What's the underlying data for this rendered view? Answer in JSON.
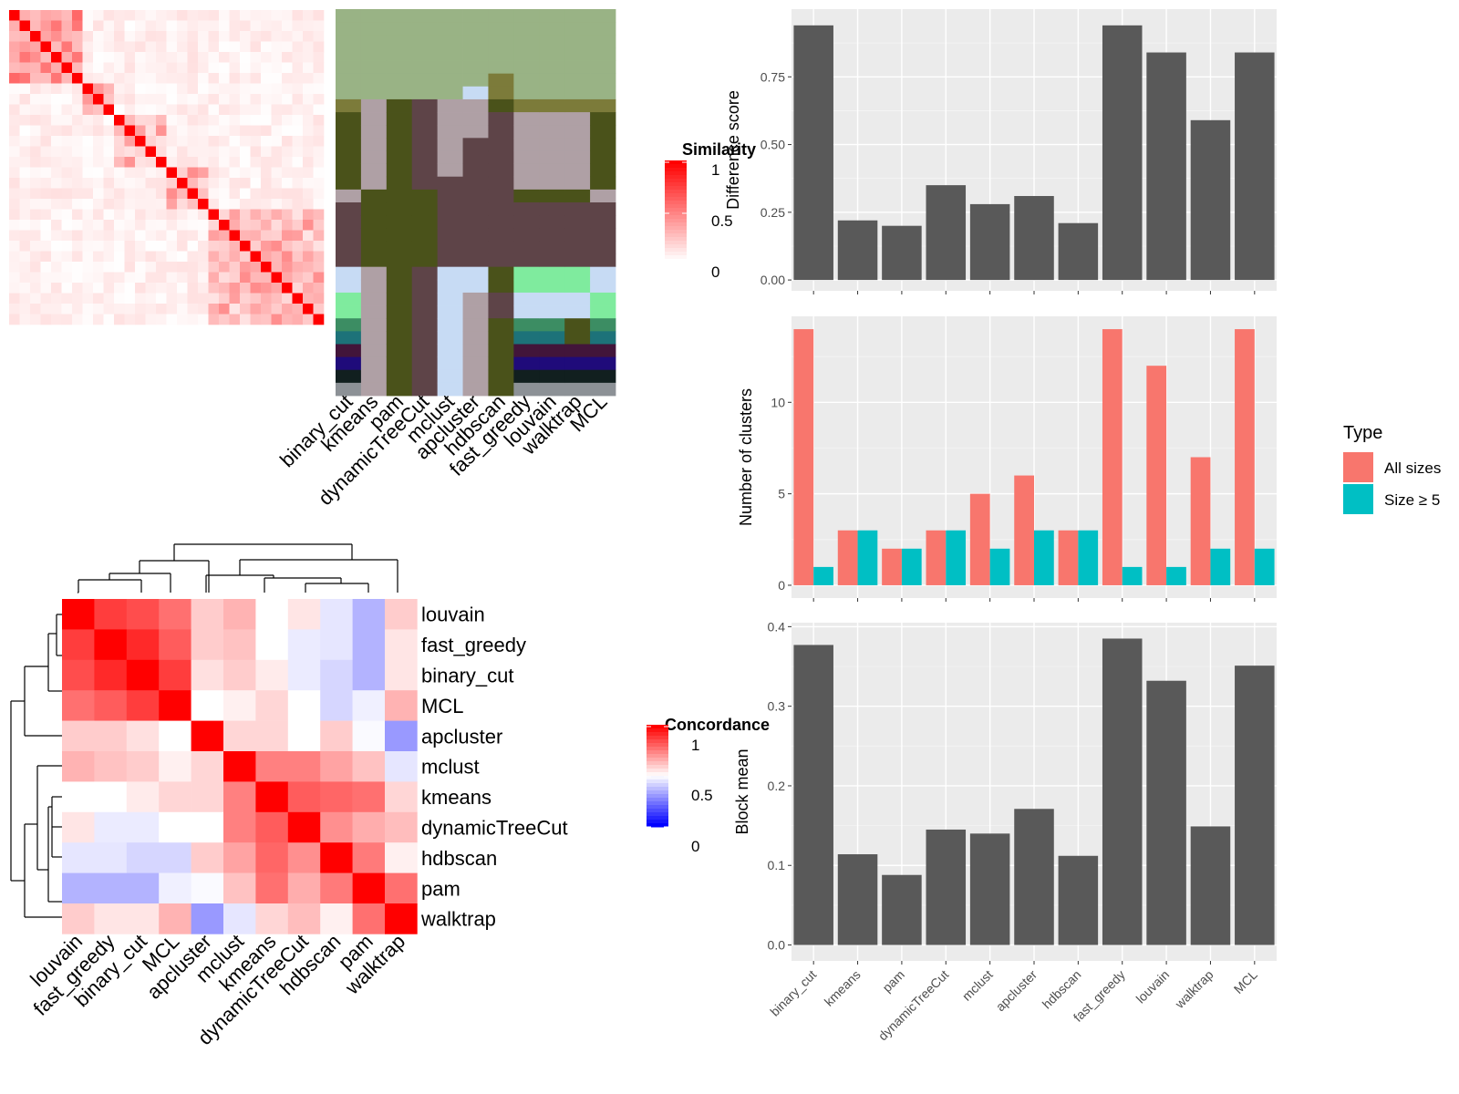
{
  "methods": [
    "binary_cut",
    "kmeans",
    "pam",
    "dynamicTreeCut",
    "mclust",
    "apcluster",
    "hdbscan",
    "fast_greedy",
    "louvain",
    "walktrap",
    "MCL"
  ],
  "colors": {
    "bar_dark": "#595959",
    "all_sizes": "#F8766D",
    "size_ge_5": "#00BFC4",
    "panel_bg": "#EBEBEB",
    "grid": "#FFFFFF"
  },
  "similarity_legend": {
    "title": "Similarity",
    "ticks": [
      "1",
      "0.5",
      "0"
    ]
  },
  "concordance_legend": {
    "title": "Concordance",
    "ticks": [
      "1",
      "0.5",
      "0"
    ]
  },
  "type_legend": {
    "title": "Type"
  },
  "chart_data": [
    {
      "type": "heatmap",
      "name": "similarity-matrix",
      "size": 30,
      "diagonal": 1,
      "block_structure": [
        [
          0,
          7
        ],
        [
          7,
          10
        ],
        [
          10,
          15
        ],
        [
          15,
          19
        ],
        [
          19,
          30
        ]
      ],
      "value_range": [
        0,
        1
      ]
    },
    {
      "type": "heatmap",
      "name": "cluster-membership",
      "columns": [
        "binary_cut",
        "kmeans",
        "pam",
        "dynamicTreeCut",
        "mclust",
        "apcluster",
        "hdbscan",
        "fast_greedy",
        "louvain",
        "walktrap",
        "MCL"
      ],
      "rows": 30
    },
    {
      "type": "heatmap",
      "name": "concordance-heatmap",
      "labels": [
        "louvain",
        "fast_greedy",
        "binary_cut",
        "MCL",
        "apcluster",
        "mclust",
        "kmeans",
        "dynamicTreeCut",
        "hdbscan",
        "pam",
        "walktrap"
      ],
      "values": [
        [
          1.0,
          0.88,
          0.85,
          0.78,
          0.6,
          0.65,
          0.5,
          0.55,
          0.45,
          0.35,
          0.6
        ],
        [
          0.88,
          1.0,
          0.92,
          0.82,
          0.6,
          0.62,
          0.5,
          0.46,
          0.45,
          0.35,
          0.55
        ],
        [
          0.85,
          0.92,
          1.0,
          0.88,
          0.56,
          0.6,
          0.54,
          0.46,
          0.42,
          0.35,
          0.55
        ],
        [
          0.78,
          0.82,
          0.88,
          1.0,
          0.5,
          0.53,
          0.58,
          0.5,
          0.42,
          0.47,
          0.65
        ],
        [
          0.6,
          0.6,
          0.56,
          0.5,
          1.0,
          0.58,
          0.58,
          0.5,
          0.6,
          0.49,
          0.3
        ],
        [
          0.65,
          0.62,
          0.6,
          0.53,
          0.58,
          1.0,
          0.75,
          0.75,
          0.68,
          0.62,
          0.45
        ],
        [
          0.5,
          0.5,
          0.54,
          0.58,
          0.58,
          0.75,
          1.0,
          0.82,
          0.8,
          0.78,
          0.58
        ],
        [
          0.55,
          0.46,
          0.46,
          0.5,
          0.5,
          0.75,
          0.82,
          1.0,
          0.72,
          0.66,
          0.63
        ],
        [
          0.45,
          0.45,
          0.42,
          0.42,
          0.6,
          0.68,
          0.8,
          0.72,
          1.0,
          0.76,
          0.53
        ],
        [
          0.35,
          0.35,
          0.35,
          0.47,
          0.49,
          0.62,
          0.78,
          0.66,
          0.76,
          1.0,
          0.78
        ],
        [
          0.6,
          0.55,
          0.55,
          0.65,
          0.3,
          0.45,
          0.58,
          0.63,
          0.53,
          0.78,
          1.0
        ]
      ],
      "value_range": [
        0,
        1
      ]
    },
    {
      "type": "bar",
      "name": "difference-score",
      "categories": [
        "binary_cut",
        "kmeans",
        "pam",
        "dynamicTreeCut",
        "mclust",
        "apcluster",
        "hdbscan",
        "fast_greedy",
        "louvain",
        "walktrap",
        "MCL"
      ],
      "values": [
        0.94,
        0.22,
        0.2,
        0.35,
        0.28,
        0.31,
        0.21,
        0.94,
        0.84,
        0.59,
        0.84
      ],
      "ylabel": "Difference score",
      "ylim": [
        -0.04,
        1.0
      ],
      "yticks": [
        "0.00",
        "0.25",
        "0.50",
        "0.75"
      ]
    },
    {
      "type": "bar",
      "name": "number-of-clusters",
      "categories": [
        "binary_cut",
        "kmeans",
        "pam",
        "dynamicTreeCut",
        "mclust",
        "apcluster",
        "hdbscan",
        "fast_greedy",
        "louvain",
        "walktrap",
        "MCL"
      ],
      "series": [
        {
          "name": "All sizes",
          "values": [
            14,
            3,
            2,
            3,
            5,
            6,
            3,
            14,
            12,
            7,
            14
          ]
        },
        {
          "name": "Size ≥ 5",
          "values": [
            1,
            3,
            2,
            3,
            2,
            3,
            3,
            1,
            1,
            2,
            2
          ]
        }
      ],
      "ylabel": "Number of clusters",
      "ylim": [
        -0.7,
        14.7
      ],
      "yticks": [
        "0",
        "5",
        "10"
      ],
      "legend": "right"
    },
    {
      "type": "bar",
      "name": "block-mean",
      "categories": [
        "binary_cut",
        "kmeans",
        "pam",
        "dynamicTreeCut",
        "mclust",
        "apcluster",
        "hdbscan",
        "fast_greedy",
        "louvain",
        "walktrap",
        "MCL"
      ],
      "values": [
        0.377,
        0.114,
        0.088,
        0.145,
        0.14,
        0.171,
        0.112,
        0.385,
        0.332,
        0.149,
        0.351
      ],
      "ylabel": "Block mean",
      "ylim": [
        -0.02,
        0.405
      ],
      "yticks": [
        "0.0",
        "0.1",
        "0.2",
        "0.3",
        "0.4"
      ]
    }
  ]
}
